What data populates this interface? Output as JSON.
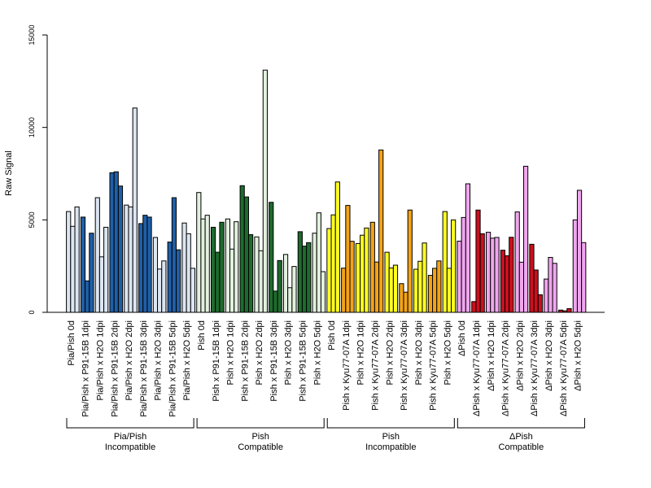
{
  "chart_data": {
    "type": "bar",
    "ylabel": "Raw Signal",
    "ylim": [
      0,
      15000
    ],
    "yticks": [
      0,
      5000,
      10000,
      15000
    ],
    "grid": false,
    "legend": "none",
    "categories": [
      "Pia/Pish 0d",
      "Pia/Pish x P91-15B 1dpi",
      "Pia/Pish x H2O 1dpi",
      "Pia/Pish x P91-15B 2dpi",
      "Pia/Pish x H2O 2dpi",
      "Pia/Pish x P91-15B 3dpi",
      "Pia/Pish x H2O 3dpi",
      "Pia/Pish x P91-15B 5dpi",
      "Pia/Pish x H2O 5dpi",
      "Pish 0d",
      "Pish x P91-15B 1dpi",
      "Pish x H2O 1dpi",
      "Pish x P91-15B 2dpi",
      "Pish x H2O 2dpi",
      "Pish x P91-15B 3dpi",
      "Pish x H2O 3dpi",
      "Pish x P91-15B 5dpi",
      "Pish x H2O 5dpi",
      "Pish 0d",
      "Pish x Kyu77-07A 1dpi",
      "Pish x H2O 1dpi",
      "Pish x Kyu77-07A 2dpi",
      "Pish x H2O 2dpi",
      "Pish x Kyu77-07A 3dpi",
      "Pish x H2O 3dpi",
      "Pish x Kyu77-07A 5dpi",
      "Pish x H2O 5dpi",
      "ΔPish 0d",
      "ΔPish x Kyu77-07A 1dpi",
      "ΔPish x H2O 1dpi",
      "ΔPish x Kyu77-07A 2dpi",
      "ΔPish x H2O 2dpi",
      "ΔPish x Kyu77-07A 3dpi",
      "ΔPish x H2O 3dpi",
      "ΔPish x Kyu77-07A 5dpi",
      "ΔPish x H2O 5dpi"
    ],
    "values": [
      [
        5450,
        4650,
        5700
      ],
      [
        5150,
        1700,
        4280
      ],
      [
        6200,
        3000,
        4600
      ],
      [
        7550,
        7600,
        6830
      ],
      [
        5800,
        5700,
        11050
      ],
      [
        4800,
        5250,
        5150
      ],
      [
        4050,
        2340,
        2780
      ],
      [
        3800,
        6200,
        3380
      ],
      [
        4830,
        4250,
        2380
      ],
      [
        6480,
        5050,
        5250
      ],
      [
        4600,
        3250,
        4870
      ],
      [
        5050,
        3420,
        4900
      ],
      [
        6850,
        6240,
        4200
      ],
      [
        4080,
        3330,
        13100
      ],
      [
        5950,
        1150,
        2800
      ],
      [
        3130,
        1330,
        2480
      ],
      [
        4360,
        3580,
        3770
      ],
      [
        4280,
        5380,
        2200
      ],
      [
        4530,
        5270,
        7050
      ],
      [
        2390,
        5780,
        3840
      ],
      [
        3720,
        4170,
        4560
      ],
      [
        4870,
        2720,
        8780
      ],
      [
        3250,
        2400,
        2550
      ],
      [
        1550,
        1090,
        5530
      ],
      [
        2330,
        2760,
        3750
      ],
      [
        2000,
        2380,
        2780
      ],
      [
        5450,
        2380,
        5000
      ],
      [
        3850,
        5130,
        6950
      ],
      [
        580,
        5530,
        4250
      ],
      [
        4330,
        4010,
        4050
      ],
      [
        3360,
        3060,
        4060
      ],
      [
        5430,
        2710,
        7900
      ],
      [
        3680,
        2290,
        950
      ],
      [
        1800,
        2970,
        2650
      ],
      [
        120,
        80,
        200
      ],
      [
        5000,
        6600,
        3770
      ]
    ],
    "colors": [
      "#dce6f2",
      "#1f5fa8",
      "#dce6f2",
      "#1f5fa8",
      "#dce6f2",
      "#1f5fa8",
      "#dce6f2",
      "#1f5fa8",
      "#dce6f2",
      "#e2f1df",
      "#1e6b2e",
      "#e2f1df",
      "#1e6b2e",
      "#e2f1df",
      "#1e6b2e",
      "#e2f1df",
      "#1e6b2e",
      "#e2f1df",
      "#ffff22",
      "#f3a317",
      "#ffff22",
      "#f3a317",
      "#ffff22",
      "#f3a317",
      "#ffff22",
      "#f3a317",
      "#ffff22",
      "#f0a6ee",
      "#cc0f1e",
      "#f0a6ee",
      "#cc0f1e",
      "#f0a6ee",
      "#cc0f1e",
      "#f0a6ee",
      "#cc0f1e",
      "#f0a6ee"
    ],
    "groups": [
      {
        "label": [
          "Pia/Pish",
          "Incompatible"
        ],
        "start": 0,
        "end": 8
      },
      {
        "label": [
          "Pish",
          "Compatible"
        ],
        "start": 9,
        "end": 17
      },
      {
        "label": [
          "Pish",
          "Incompatible"
        ],
        "start": 18,
        "end": 26
      },
      {
        "label": [
          "ΔPish",
          "Compatible"
        ],
        "start": 27,
        "end": 35
      }
    ]
  }
}
